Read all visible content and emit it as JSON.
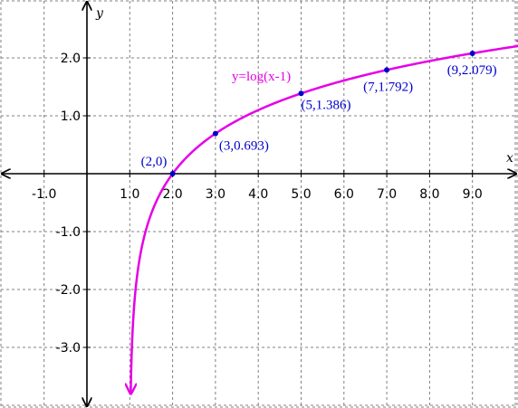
{
  "chart_data": {
    "type": "line",
    "title": "",
    "xlabel": "x",
    "ylabel": "y",
    "xlim": [
      -2.0,
      10.0
    ],
    "ylim": [
      -4.0,
      3.0
    ],
    "grid": true,
    "x_ticks": [
      -1.0,
      1.0,
      2.0,
      3.0,
      4.0,
      5.0,
      6.0,
      7.0,
      8.0,
      9.0
    ],
    "x_tick_labels": [
      "-1.0",
      "1.0",
      "2.0",
      "3.0",
      "4.0",
      "5.0",
      "6.0",
      "7.0",
      "8.0",
      "9.0"
    ],
    "y_ticks": [
      2.0,
      1.0,
      -1.0,
      -2.0,
      -3.0
    ],
    "y_tick_labels": [
      "2.0",
      "1.0",
      "-1.0",
      "-2.0",
      "-3.0"
    ],
    "series": [
      {
        "name": "y=log(x-1)",
        "function": "log(x-1)",
        "color": "#e600e6"
      }
    ],
    "points": [
      {
        "x": 2,
        "y": 0,
        "label": "(2,0)"
      },
      {
        "x": 3,
        "y": 0.693,
        "label": "(3,0.693)"
      },
      {
        "x": 5,
        "y": 1.386,
        "label": "(5,1.386)"
      },
      {
        "x": 7,
        "y": 1.792,
        "label": "(7,1.792)"
      },
      {
        "x": 9,
        "y": 2.079,
        "label": "(9,2.079)"
      }
    ],
    "colors": {
      "curve": "#e600e6",
      "points": "#0000cc",
      "grid": "#808080",
      "axes": "#000000"
    }
  }
}
